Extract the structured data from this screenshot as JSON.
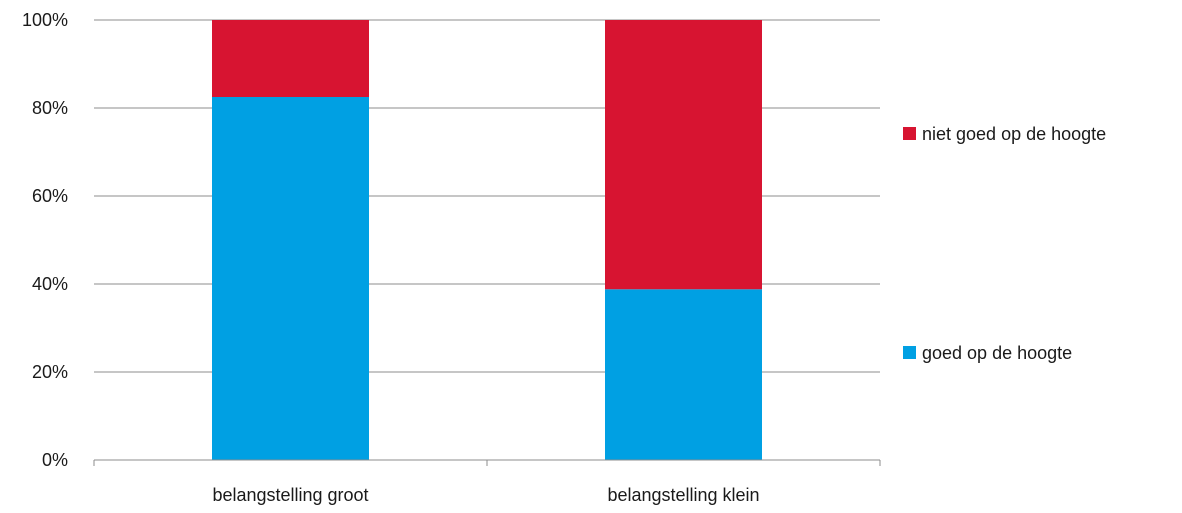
{
  "chart_data": {
    "type": "bar",
    "stacked": true,
    "percent_stacked": true,
    "categories": [
      "belangstelling groot",
      "belangstelling klein"
    ],
    "series": [
      {
        "name": "goed op de hoogte",
        "values": [
          82.5,
          38.8
        ],
        "color": "#00A0E3"
      },
      {
        "name": "niet goed op de hoogte",
        "values": [
          17.5,
          61.2
        ],
        "color": "#D71431"
      }
    ],
    "ylim": [
      0,
      100
    ],
    "yticks": [
      "0%",
      "20%",
      "40%",
      "60%",
      "80%",
      "100%"
    ],
    "grid": true,
    "legend_position": "right",
    "xlabel": "",
    "ylabel": ""
  }
}
